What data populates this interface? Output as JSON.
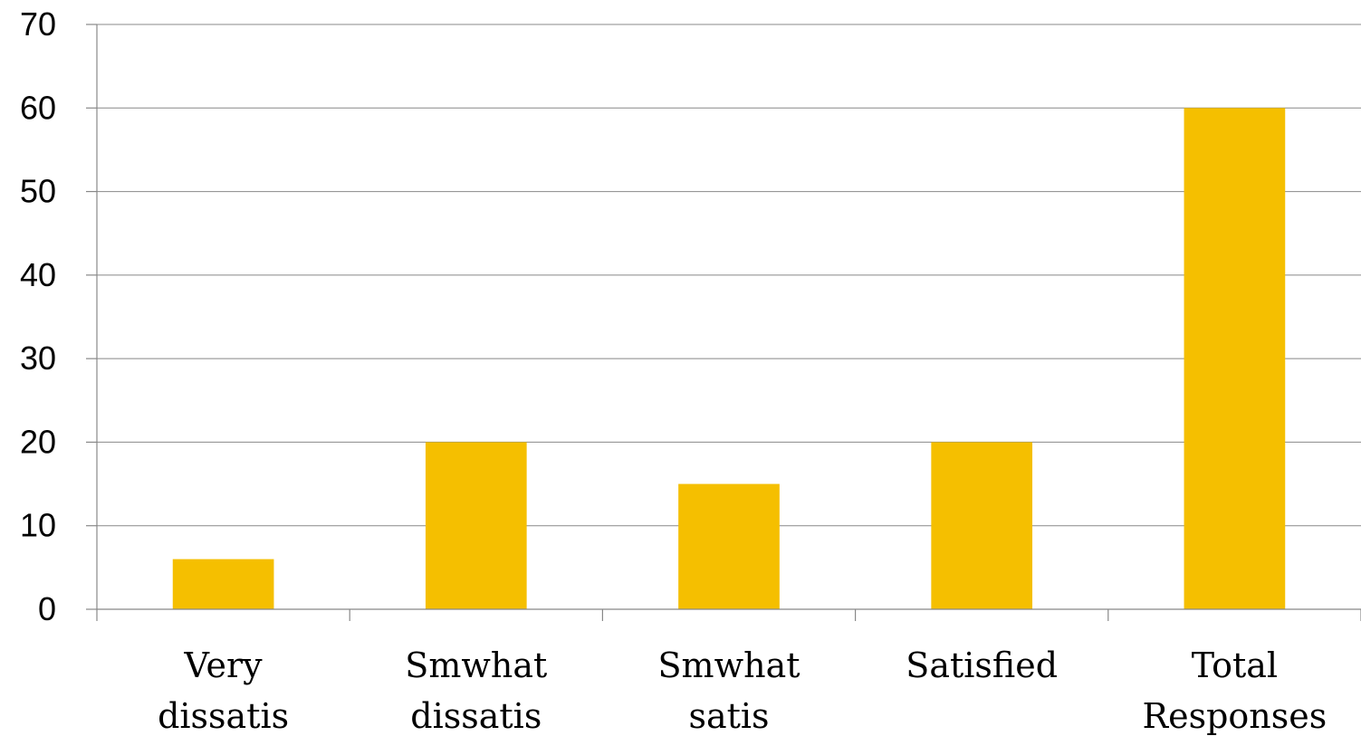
{
  "chart_data": {
    "type": "bar",
    "categories": [
      [
        "Very",
        "dissatis"
      ],
      [
        "Smwhat",
        "dissatis"
      ],
      [
        "Smwhat",
        "satis"
      ],
      [
        "Satisfied"
      ],
      [
        "Total",
        "Responses"
      ]
    ],
    "values": [
      6,
      20,
      15,
      20,
      60
    ],
    "ylim": [
      0,
      70
    ],
    "yticks": [
      0,
      10,
      20,
      30,
      40,
      50,
      60,
      70
    ],
    "grid": true,
    "legend": "none",
    "bar_color": "#F5BF00"
  }
}
